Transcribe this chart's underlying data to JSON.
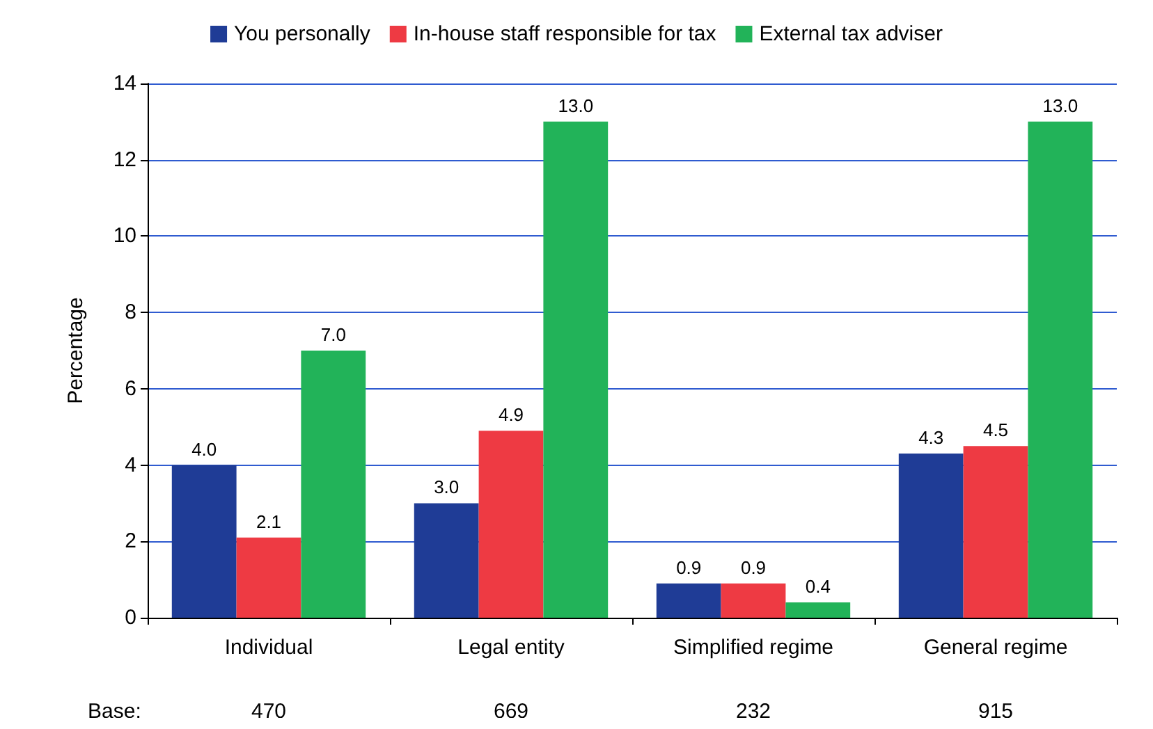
{
  "chart_data": {
    "type": "bar",
    "ylabel": "Percentage",
    "categories": [
      "Individual",
      "Legal entity",
      "Simplified regime",
      "General regime"
    ],
    "series": [
      {
        "name": "You personally",
        "color": "#1f3c96",
        "values": [
          4.0,
          3.0,
          0.9,
          4.3
        ],
        "value_labels": [
          "4.0",
          "3.0",
          "0.9",
          "4.3"
        ]
      },
      {
        "name": "In-house staff responsible for tax",
        "color": "#ee3a43",
        "values": [
          2.1,
          4.9,
          0.9,
          4.5
        ],
        "value_labels": [
          "2.1",
          "4.9",
          "0.9",
          "4.5"
        ]
      },
      {
        "name": "External tax adviser",
        "color": "#22b359",
        "values": [
          7.0,
          13.0,
          0.4,
          13.0
        ],
        "value_labels": [
          "7.0",
          "13.0",
          "0.4",
          "13.0"
        ]
      }
    ],
    "ylim": [
      0,
      14
    ],
    "yticks": [
      0,
      2,
      4,
      6,
      8,
      10,
      12,
      14
    ],
    "grid": "y",
    "legend": "top",
    "annotations": [
      "Base:",
      "470",
      "669",
      "232",
      "915"
    ]
  }
}
